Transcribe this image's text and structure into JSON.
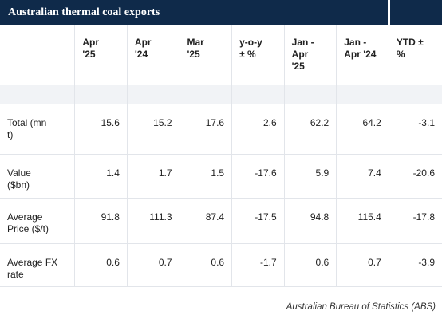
{
  "title": "Australian thermal coal exports",
  "columns": [
    "",
    "Apr\n'25",
    "Apr\n'24",
    "Mar\n'25",
    "y-o-y\n± %",
    "Jan -\nApr\n'25",
    "Jan -\nApr '24",
    "YTD ±\n%"
  ],
  "rows": [
    {
      "label": "Total (mn\nt)",
      "values": [
        "15.6",
        "15.2",
        "17.6",
        "2.6",
        "62.2",
        "64.2",
        "-3.1"
      ]
    },
    {
      "label": "Value\n($bn)",
      "values": [
        "1.4",
        "1.7",
        "1.5",
        "-17.6",
        "5.9",
        "7.4",
        "-20.6"
      ]
    },
    {
      "label": "Average\nPrice ($/t)",
      "values": [
        "91.8",
        "111.3",
        "87.4",
        "-17.5",
        "94.8",
        "115.4",
        "-17.8"
      ]
    },
    {
      "label": "Average FX\nrate",
      "values": [
        "0.6",
        "0.7",
        "0.6",
        "-1.7",
        "0.6",
        "0.7",
        "-3.9"
      ]
    }
  ],
  "source": "Australian Bureau of Statistics (ABS)"
}
